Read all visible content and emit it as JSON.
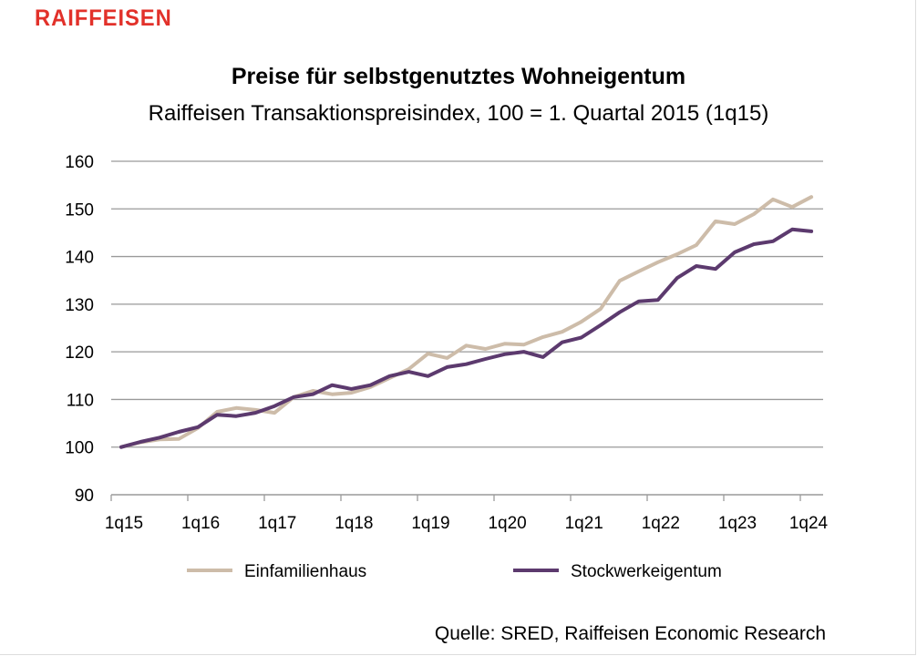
{
  "logo": "RAIFFEISEN",
  "colors": {
    "logo": "#e2312a",
    "einfamilienhaus": "#cdbca9",
    "stockwerkeigentum": "#5c3a6e",
    "grid": "#9a9a9a"
  },
  "chart_data": {
    "type": "line",
    "title": "Preise für selbstgenutztes Wohneigentum",
    "subtitle": "Raiffeisen Transaktionspreisindex, 100 = 1. Quartal 2015 (1q15)",
    "xlabel": "",
    "ylabel": "",
    "ylim": [
      90,
      160
    ],
    "yticks": [
      "90",
      "100",
      "110",
      "120",
      "130",
      "140",
      "150",
      "160"
    ],
    "xtick_labels": [
      "1q15",
      "1q16",
      "1q17",
      "1q18",
      "1q19",
      "1q20",
      "1q21",
      "1q22",
      "1q23",
      "1q24"
    ],
    "grid": true,
    "legend_position": "bottom",
    "series": [
      {
        "name": "Einfamilienhaus",
        "values": [
          100,
          101,
          101.6,
          101.7,
          104,
          107.4,
          108.2,
          107.8,
          107.2,
          110.5,
          111.8,
          111.1,
          111.4,
          112.6,
          114.5,
          116.4,
          119.6,
          118.7,
          121.3,
          120.6,
          121.7,
          121.5,
          123.1,
          124.2,
          126.3,
          129,
          134.9,
          136.9,
          138.8,
          140.5,
          142.4,
          147.4,
          146.8,
          148.9,
          152,
          150.4,
          152.5
        ]
      },
      {
        "name": "Stockwerkeigentum",
        "values": [
          100,
          101.1,
          102,
          103.2,
          104.2,
          106.8,
          106.5,
          107.2,
          108.6,
          110.5,
          111.1,
          113,
          112.2,
          113,
          114.9,
          115.8,
          114.9,
          116.8,
          117.4,
          118.5,
          119.5,
          120,
          118.9,
          122,
          123,
          125.6,
          128.3,
          130.6,
          130.9,
          135.5,
          138,
          137.4,
          140.9,
          142.6,
          143.2,
          145.7,
          145.3
        ]
      }
    ],
    "source": "Quelle: SRED, Raiffeisen Economic Research"
  }
}
